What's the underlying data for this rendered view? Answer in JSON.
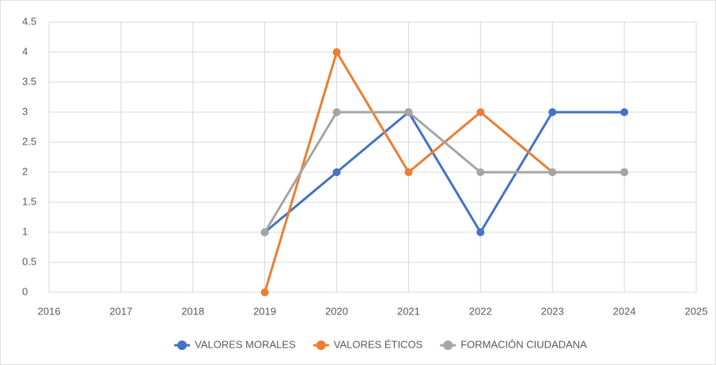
{
  "chart_data": {
    "type": "line",
    "x": [
      2019,
      2020,
      2021,
      2022,
      2023,
      2024
    ],
    "series": [
      {
        "name": "VALORES MORALES",
        "color": "#4472c4",
        "values": [
          1,
          2,
          3,
          1,
          3,
          3
        ]
      },
      {
        "name": "VALORES ÉTICOS",
        "color": "#ed7d31",
        "values": [
          0,
          4,
          2,
          3,
          2,
          2
        ]
      },
      {
        "name": "FORMACIÓN CIUDADANA",
        "color": "#a5a5a5",
        "values": [
          1,
          3,
          3,
          2,
          2,
          2
        ]
      }
    ],
    "xlim": [
      2016,
      2025
    ],
    "xticks": [
      2016,
      2017,
      2018,
      2019,
      2020,
      2021,
      2022,
      2023,
      2024,
      2025
    ],
    "ylim": [
      0,
      4.5
    ],
    "yticks": [
      0,
      0.5,
      1,
      1.5,
      2,
      2.5,
      3,
      3.5,
      4,
      4.5
    ],
    "grid": true,
    "legend": "bottom"
  }
}
